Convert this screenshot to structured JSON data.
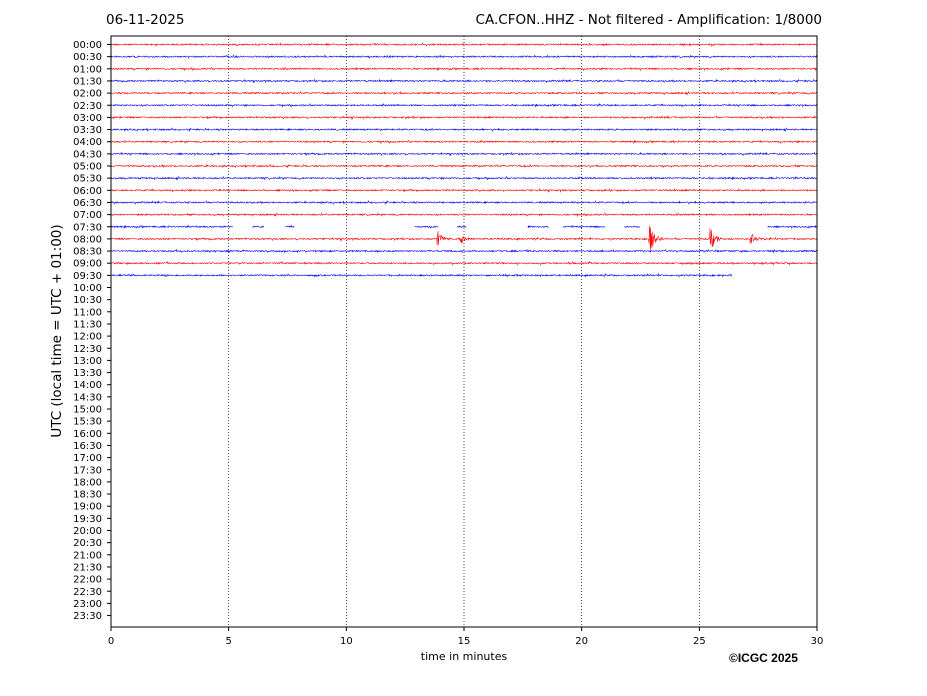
{
  "header": {
    "date": "06-11-2025",
    "title": "CA.CFON..HHZ - Not filtered - Amplification: 1/8000"
  },
  "footer": {
    "copyright": "©ICGC 2025"
  },
  "colors": {
    "trace_a": "#ff0000",
    "trace_b": "#0000ff",
    "axis": "#000000",
    "grid": "#000000"
  },
  "chart_data": {
    "type": "line",
    "title": "CA.CFON..HHZ - Not filtered - Amplification: 1/8000",
    "xlabel": "time in minutes",
    "ylabel": "UTC (local time = UTC + 01:00)",
    "xlim": [
      0,
      30
    ],
    "x_ticks": [
      "0",
      "5",
      "10",
      "15",
      "20",
      "25",
      "30"
    ],
    "grid": "vertical dotted at 5, 10, 15, 20, 25",
    "y_ticks": [
      "00:00",
      "00:30",
      "01:00",
      "01:30",
      "02:00",
      "02:30",
      "03:00",
      "03:30",
      "04:00",
      "04:30",
      "05:00",
      "05:30",
      "06:00",
      "06:30",
      "07:00",
      "07:30",
      "08:00",
      "08:30",
      "09:00",
      "09:30",
      "10:00",
      "10:30",
      "11:00",
      "11:30",
      "12:00",
      "12:30",
      "13:00",
      "13:30",
      "14:00",
      "14:30",
      "15:00",
      "15:30",
      "16:00",
      "16:30",
      "17:00",
      "17:30",
      "18:00",
      "18:30",
      "19:00",
      "19:30",
      "20:00",
      "20:30",
      "21:00",
      "21:30",
      "22:00",
      "22:30",
      "23:00",
      "23:30"
    ],
    "traces": [
      {
        "row": "00:00",
        "color": "red",
        "end_minute": 30
      },
      {
        "row": "00:30",
        "color": "blue",
        "end_minute": 30
      },
      {
        "row": "01:00",
        "color": "red",
        "end_minute": 30
      },
      {
        "row": "01:30",
        "color": "blue",
        "end_minute": 30
      },
      {
        "row": "02:00",
        "color": "red",
        "end_minute": 30
      },
      {
        "row": "02:30",
        "color": "blue",
        "end_minute": 30
      },
      {
        "row": "03:00",
        "color": "red",
        "end_minute": 30
      },
      {
        "row": "03:30",
        "color": "blue",
        "end_minute": 30
      },
      {
        "row": "04:00",
        "color": "red",
        "end_minute": 30
      },
      {
        "row": "04:30",
        "color": "blue",
        "end_minute": 30
      },
      {
        "row": "05:00",
        "color": "red",
        "end_minute": 30
      },
      {
        "row": "05:30",
        "color": "blue",
        "end_minute": 30
      },
      {
        "row": "06:00",
        "color": "red",
        "end_minute": 30
      },
      {
        "row": "06:30",
        "color": "blue",
        "end_minute": 30
      },
      {
        "row": "07:00",
        "color": "red",
        "end_minute": 30
      },
      {
        "row": "07:30",
        "color": "blue",
        "end_minute": 30,
        "gaps": [
          [
            5.2,
            6.0
          ],
          [
            6.5,
            7.4
          ],
          [
            7.8,
            12.9
          ],
          [
            13.9,
            14.7
          ],
          [
            15.1,
            17.7
          ],
          [
            18.6,
            19.2
          ],
          [
            21.0,
            21.8
          ],
          [
            22.5,
            27.9
          ]
        ]
      },
      {
        "row": "08:00",
        "color": "red",
        "end_minute": 30,
        "events": [
          {
            "minute": 13.9,
            "amp": 0.5
          },
          {
            "minute": 14.9,
            "amp": 0.35
          },
          {
            "minute": 22.9,
            "amp": 1.0
          },
          {
            "minute": 25.5,
            "amp": 0.8
          },
          {
            "minute": 27.2,
            "amp": 0.4
          }
        ]
      },
      {
        "row": "08:30",
        "color": "blue",
        "end_minute": 30
      },
      {
        "row": "09:00",
        "color": "red",
        "end_minute": 30
      },
      {
        "row": "09:30",
        "color": "blue",
        "end_minute": 26.4
      }
    ]
  }
}
